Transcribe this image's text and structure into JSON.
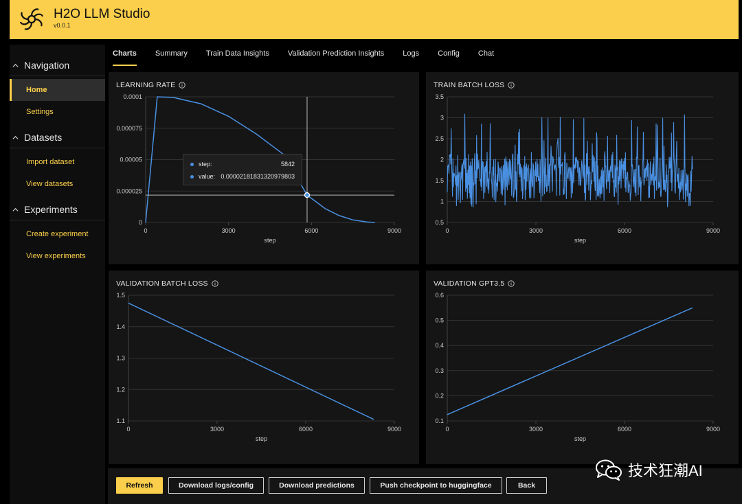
{
  "app": {
    "title": "H2O LLM Studio",
    "version": "v0.0.1"
  },
  "sidebar": {
    "sections": [
      {
        "label": "Navigation",
        "items": [
          {
            "label": "Home",
            "active": true
          },
          {
            "label": "Settings"
          }
        ]
      },
      {
        "label": "Datasets",
        "items": [
          {
            "label": "Import dataset"
          },
          {
            "label": "View datasets"
          }
        ]
      },
      {
        "label": "Experiments",
        "items": [
          {
            "label": "Create experiment"
          },
          {
            "label": "View experiments"
          }
        ]
      }
    ]
  },
  "tabs": [
    {
      "label": "Charts",
      "active": true
    },
    {
      "label": "Summary"
    },
    {
      "label": "Train Data Insights"
    },
    {
      "label": "Validation Prediction Insights"
    },
    {
      "label": "Logs"
    },
    {
      "label": "Config"
    },
    {
      "label": "Chat"
    }
  ],
  "charts": {
    "learning_rate": {
      "title": "LEARNING RATE",
      "xlabel": "step"
    },
    "train_batch_loss": {
      "title": "TRAIN BATCH LOSS",
      "xlabel": "step"
    },
    "validation_batch_loss": {
      "title": "VALIDATION BATCH LOSS",
      "xlabel": "step"
    },
    "validation_gpt": {
      "title": "VALIDATION GPT3.5",
      "xlabel": "step"
    }
  },
  "tooltip": {
    "step_label": "step:",
    "step_value": "5842",
    "value_label": "value:",
    "value_value": "0.00002181831320979803"
  },
  "footer": {
    "refresh": "Refresh",
    "download_logs": "Download logs/config",
    "download_predictions": "Download predictions",
    "push_checkpoint": "Push checkpoint to huggingface",
    "back": "Back"
  },
  "watermark": {
    "text": "技术狂潮AI"
  },
  "colors": {
    "accent": "#fbcf4b",
    "series": "#4a90e2",
    "panel": "#151515"
  },
  "chart_data": [
    {
      "type": "line",
      "title": "LEARNING RATE",
      "xlabel": "step",
      "xlim": [
        0,
        9000
      ],
      "ylim": [
        0,
        0.0001
      ],
      "x_ticks": [
        "0",
        "3000",
        "6000",
        "9000"
      ],
      "y_ticks": [
        "0",
        "0.000025",
        "0.00005",
        "0.000075",
        "0.0001"
      ],
      "x_tick_values": [
        0,
        3000,
        6000,
        9000
      ],
      "y_tick_values": [
        0,
        2.5e-05,
        5e-05,
        7.5e-05,
        0.0001
      ],
      "series": [
        {
          "x": [
            0,
            420,
            1000,
            2000,
            3000,
            4000,
            5000,
            5842,
            6500,
            7000,
            7500,
            8000,
            8300
          ],
          "values": [
            0,
            0.0001,
            9.95e-05,
            9.45e-05,
            8.45e-05,
            7.05e-05,
            5.4e-05,
            2.18e-05,
            1.1e-05,
            5.5e-06,
            2e-06,
            4e-07,
            0
          ]
        }
      ],
      "annotation": {
        "x": 5842,
        "y": 2.18e-05
      }
    },
    {
      "type": "line",
      "title": "TRAIN BATCH LOSS",
      "xlabel": "step",
      "xlim": [
        0,
        9000
      ],
      "ylim": [
        0.5,
        3.5
      ],
      "x_ticks": [
        "0",
        "3000",
        "6000",
        "9000"
      ],
      "y_ticks": [
        "0.5",
        "1",
        "1.5",
        "2",
        "2.5",
        "3",
        "3.5"
      ],
      "x_tick_values": [
        0,
        3000,
        6000,
        9000
      ],
      "y_tick_values": [
        0.5,
        1,
        1.5,
        2,
        2.5,
        3,
        3.5
      ],
      "series": [
        {
          "x_range": [
            0,
            8300
          ],
          "mean": 1.6,
          "min": 0.85,
          "max": 3.1
        }
      ]
    },
    {
      "type": "line",
      "title": "VALIDATION BATCH LOSS",
      "xlabel": "step",
      "xlim": [
        0,
        9000
      ],
      "ylim": [
        1.1,
        1.5
      ],
      "x_ticks": [
        "0",
        "3000",
        "6000",
        "9000"
      ],
      "y_ticks": [
        "1.1",
        "1.2",
        "1.3",
        "1.4",
        "1.5"
      ],
      "x_tick_values": [
        0,
        3000,
        6000,
        9000
      ],
      "y_tick_values": [
        1.1,
        1.2,
        1.3,
        1.4,
        1.5
      ],
      "series": [
        {
          "x": [
            0,
            8300
          ],
          "values": [
            1.475,
            1.105
          ]
        }
      ]
    },
    {
      "type": "line",
      "title": "VALIDATION GPT3.5",
      "xlabel": "step",
      "xlim": [
        0,
        9000
      ],
      "ylim": [
        0.1,
        0.6
      ],
      "x_ticks": [
        "0",
        "3000",
        "6000",
        "9000"
      ],
      "y_ticks": [
        "0.1",
        "0.2",
        "0.3",
        "0.4",
        "0.5",
        "0.6"
      ],
      "x_tick_values": [
        0,
        3000,
        6000,
        9000
      ],
      "y_tick_values": [
        0.1,
        0.2,
        0.3,
        0.4,
        0.5,
        0.6
      ],
      "series": [
        {
          "x": [
            0,
            8300
          ],
          "values": [
            0.125,
            0.55
          ]
        }
      ]
    }
  ]
}
